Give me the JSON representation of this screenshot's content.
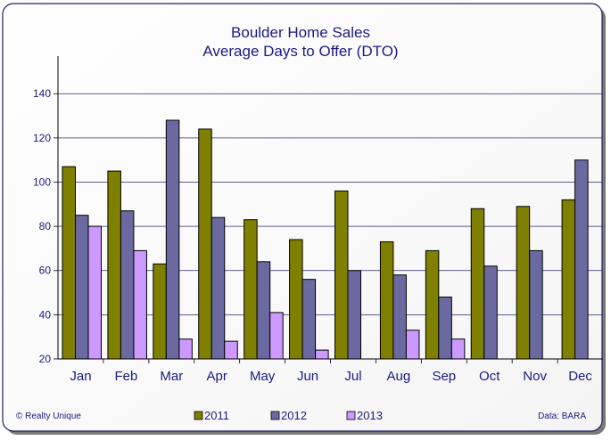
{
  "chart_data": {
    "type": "bar",
    "title": "Boulder Home Sales",
    "subtitle": "Average Days to Offer (DTO)",
    "categories": [
      "Jan",
      "Feb",
      "Mar",
      "Apr",
      "May",
      "Jun",
      "Jul",
      "Aug",
      "Sep",
      "Oct",
      "Nov",
      "Dec"
    ],
    "series": [
      {
        "name": "2011",
        "color": "#7f7f00",
        "values": [
          107,
          105,
          63,
          124,
          83,
          74,
          96,
          73,
          69,
          88,
          89,
          92
        ]
      },
      {
        "name": "2012",
        "color": "#6a6aa0",
        "values": [
          85,
          87,
          128,
          84,
          64,
          56,
          60,
          58,
          48,
          62,
          69,
          110
        ]
      },
      {
        "name": "2013",
        "color": "#cc99ff",
        "values": [
          80,
          69,
          29,
          28,
          41,
          24,
          null,
          33,
          29,
          null,
          null,
          null
        ]
      }
    ],
    "ylim": [
      20,
      155
    ],
    "yticks": [
      20,
      40,
      60,
      80,
      100,
      120,
      140
    ],
    "ytick_labels": [
      "20",
      "40",
      "60",
      "80",
      "100",
      "120",
      "140"
    ],
    "grid": true,
    "legend_position": "bottom-center"
  },
  "footer": {
    "copyright": "© Realty Unique",
    "source": "Data: BARA"
  }
}
